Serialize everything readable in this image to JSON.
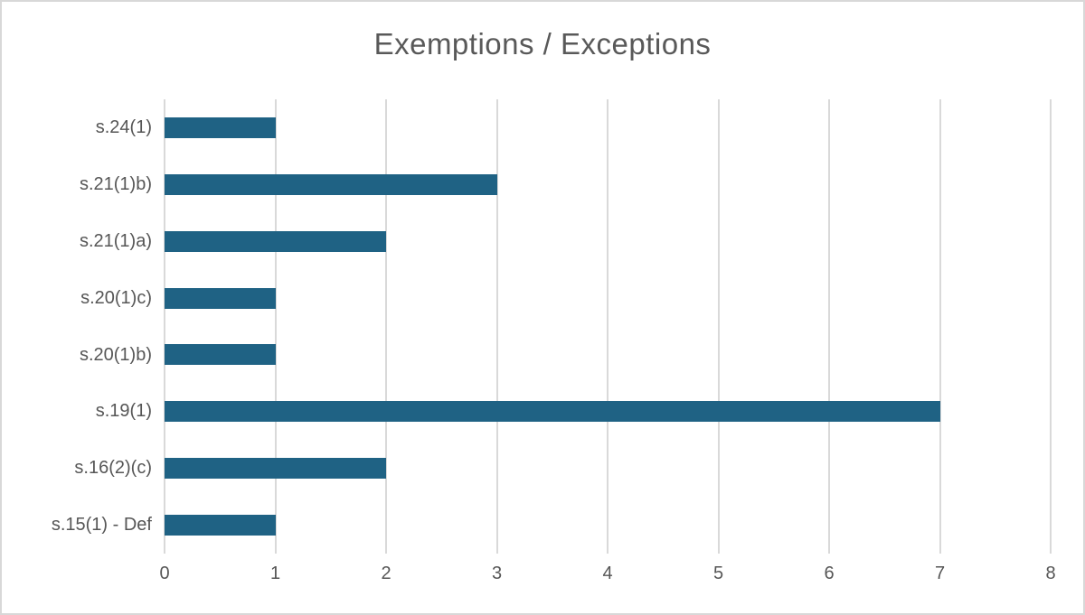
{
  "chart_data": {
    "type": "bar",
    "orientation": "horizontal",
    "title": "Exemptions / Exceptions",
    "categories": [
      "s.24(1)",
      "s.21(1)b)",
      "s.21(1)a)",
      "s.20(1)c)",
      "s.20(1)b)",
      "s.19(1)",
      "s.16(2)(c)",
      "s.15(1) - Def"
    ],
    "values": [
      1,
      3,
      2,
      1,
      1,
      7,
      2,
      1
    ],
    "xlabel": "",
    "ylabel": "",
    "xlim": [
      0,
      8
    ],
    "x_ticks": [
      0,
      1,
      2,
      3,
      4,
      5,
      6,
      7,
      8
    ],
    "grid": "vertical-only",
    "legend": "none",
    "colors": {
      "bar": "#1f6284",
      "title_text": "#595959",
      "axis_text": "#565656",
      "gridline": "#d9d9d9",
      "frame_border": "#d8d8d8",
      "background": "#ffffff"
    }
  }
}
